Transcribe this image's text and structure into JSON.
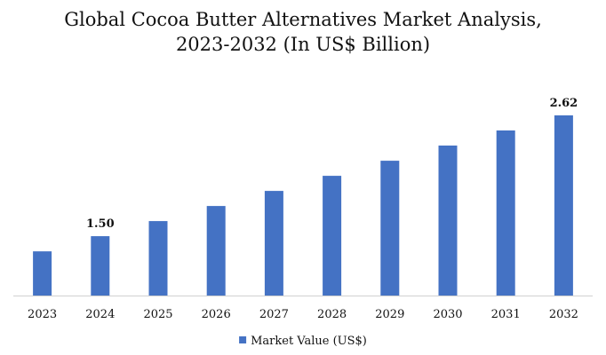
{
  "chart_data": {
    "type": "bar",
    "title_line1": "Global Cocoa Butter Alternatives Market Analysis,",
    "title_line2": "2023-2032 (In US$ Billion)",
    "xlabel": "",
    "ylabel": "",
    "categories": [
      "2023",
      "2024",
      "2025",
      "2026",
      "2027",
      "2028",
      "2029",
      "2030",
      "2031",
      "2032"
    ],
    "series": [
      {
        "name": "Market Value (US$)",
        "color": "#4472c4",
        "values": [
          1.36,
          1.5,
          1.64,
          1.78,
          1.92,
          2.06,
          2.2,
          2.34,
          2.48,
          2.62
        ]
      }
    ],
    "data_labels": [
      {
        "category": "2024",
        "text": "1.50"
      },
      {
        "category": "2032",
        "text": "2.62"
      }
    ],
    "ylim": [
      0.95,
      2.62
    ],
    "grid": false,
    "y_axis_visible": false,
    "legend_position": "bottom-center"
  }
}
